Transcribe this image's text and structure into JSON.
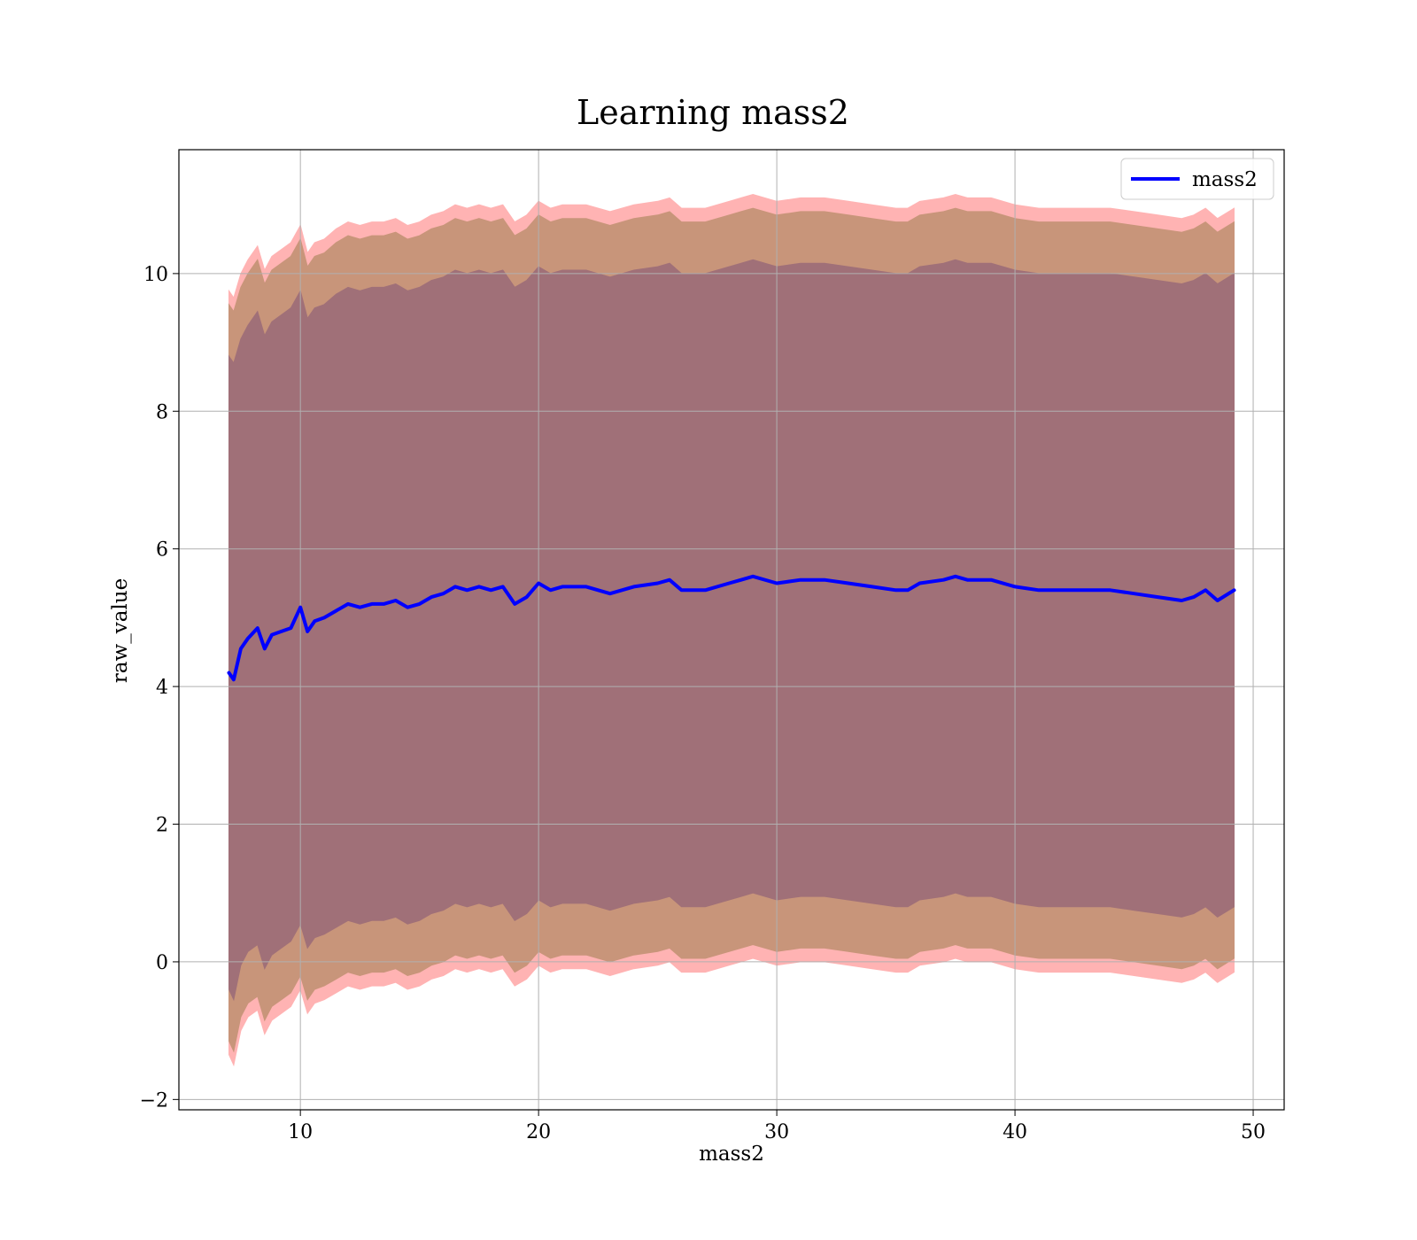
{
  "chart_data": {
    "type": "line",
    "title": "Learning mass2",
    "xlabel": "mass2",
    "ylabel": "raw_value",
    "xlim": [
      4.9,
      51.3
    ],
    "ylim": [
      -2.15,
      11.8
    ],
    "xticks": [
      10,
      20,
      30,
      40,
      50
    ],
    "yticks": [
      -2,
      0,
      2,
      4,
      6,
      8,
      10
    ],
    "grid": true,
    "legend_position": "top-right",
    "colors": {
      "mean_line": "#0000ff",
      "band_outer": "#ffb3b3",
      "band_middle": "#c8957a",
      "band_inner": "#a07078",
      "grid": "#b0b0b0"
    },
    "series": [
      {
        "name": "mass2",
        "x": [
          7.0,
          7.2,
          7.5,
          7.8,
          8.2,
          8.5,
          8.8,
          9.2,
          9.6,
          10.0,
          10.3,
          10.6,
          11.0,
          11.5,
          12.0,
          12.5,
          13.0,
          13.5,
          14.0,
          14.5,
          15.0,
          15.5,
          16.0,
          16.5,
          17.0,
          17.5,
          18.0,
          18.5,
          19.0,
          19.5,
          20.0,
          20.5,
          21.0,
          22.0,
          23.0,
          24.0,
          25.0,
          25.5,
          26.0,
          27.0,
          28.0,
          28.5,
          29.0,
          30.0,
          31.0,
          32.0,
          33.0,
          34.0,
          35.0,
          35.5,
          36.0,
          37.0,
          37.5,
          38.0,
          39.0,
          40.0,
          41.0,
          42.0,
          43.0,
          44.0,
          45.0,
          46.0,
          47.0,
          47.5,
          48.0,
          48.5,
          49.2
        ],
        "y": [
          4.2,
          4.1,
          4.55,
          4.7,
          4.85,
          4.55,
          4.75,
          4.8,
          4.85,
          5.15,
          4.8,
          4.95,
          5.0,
          5.1,
          5.2,
          5.15,
          5.2,
          5.2,
          5.25,
          5.15,
          5.2,
          5.3,
          5.35,
          5.45,
          5.4,
          5.45,
          5.4,
          5.45,
          5.2,
          5.3,
          5.5,
          5.4,
          5.45,
          5.45,
          5.35,
          5.45,
          5.5,
          5.55,
          5.4,
          5.4,
          5.5,
          5.55,
          5.6,
          5.5,
          5.55,
          5.55,
          5.5,
          5.45,
          5.4,
          5.4,
          5.5,
          5.55,
          5.6,
          5.55,
          5.55,
          5.45,
          5.4,
          5.4,
          5.4,
          5.4,
          5.35,
          5.3,
          5.25,
          5.3,
          5.4,
          5.25,
          5.4
        ]
      }
    ],
    "bands": [
      {
        "layer": "outer",
        "x": [
          7.0,
          7.2,
          7.5,
          7.8,
          8.2,
          8.5,
          8.8,
          9.2,
          9.6,
          10.0,
          10.3,
          10.6,
          11.0,
          11.5,
          12.0,
          12.5,
          13.0,
          13.5,
          14.0,
          14.5,
          15.0,
          15.5,
          16.0,
          16.5,
          17.0,
          17.5,
          18.0,
          18.5,
          19.0,
          19.5,
          20.0,
          20.5,
          21.0,
          22.0,
          23.0,
          24.0,
          25.0,
          25.5,
          26.0,
          27.0,
          28.0,
          28.5,
          29.0,
          30.0,
          31.0,
          32.0,
          33.0,
          34.0,
          35.0,
          35.5,
          36.0,
          37.0,
          37.5,
          38.0,
          39.0,
          40.0,
          41.0,
          42.0,
          43.0,
          44.0,
          45.0,
          46.0,
          47.0,
          47.5,
          48.0,
          48.5,
          49.2
        ],
        "upper": [
          9.75,
          9.65,
          10.0,
          10.2,
          10.4,
          10.05,
          10.25,
          10.35,
          10.45,
          10.7,
          10.3,
          10.45,
          10.5,
          10.65,
          10.75,
          10.7,
          10.75,
          10.75,
          10.8,
          10.7,
          10.75,
          10.85,
          10.9,
          11.0,
          10.95,
          11.0,
          10.95,
          11.0,
          10.75,
          10.85,
          11.05,
          10.95,
          11.0,
          11.0,
          10.9,
          11.0,
          11.05,
          11.1,
          10.95,
          10.95,
          11.05,
          11.1,
          11.15,
          11.05,
          11.1,
          11.1,
          11.05,
          11.0,
          10.95,
          10.95,
          11.05,
          11.1,
          11.15,
          11.1,
          11.1,
          11.0,
          10.95,
          10.95,
          10.95,
          10.95,
          10.9,
          10.85,
          10.8,
          10.85,
          10.95,
          10.8,
          10.95
        ],
        "lower": [
          -1.35,
          -1.5,
          -1.0,
          -0.8,
          -0.7,
          -1.05,
          -0.85,
          -0.75,
          -0.65,
          -0.4,
          -0.75,
          -0.6,
          -0.55,
          -0.45,
          -0.35,
          -0.4,
          -0.35,
          -0.35,
          -0.3,
          -0.4,
          -0.35,
          -0.25,
          -0.2,
          -0.1,
          -0.15,
          -0.1,
          -0.15,
          -0.1,
          -0.35,
          -0.25,
          -0.05,
          -0.15,
          -0.1,
          -0.1,
          -0.2,
          -0.1,
          -0.05,
          0.0,
          -0.15,
          -0.15,
          -0.05,
          0.0,
          0.05,
          -0.05,
          0.0,
          0.0,
          -0.05,
          -0.1,
          -0.15,
          -0.15,
          -0.05,
          0.0,
          0.05,
          0.0,
          0.0,
          -0.1,
          -0.15,
          -0.15,
          -0.15,
          -0.15,
          -0.2,
          -0.25,
          -0.3,
          -0.25,
          -0.15,
          -0.3,
          -0.15
        ]
      },
      {
        "layer": "middle",
        "x": [
          7.0,
          7.2,
          7.5,
          7.8,
          8.2,
          8.5,
          8.8,
          9.2,
          9.6,
          10.0,
          10.3,
          10.6,
          11.0,
          11.5,
          12.0,
          12.5,
          13.0,
          13.5,
          14.0,
          14.5,
          15.0,
          15.5,
          16.0,
          16.5,
          17.0,
          17.5,
          18.0,
          18.5,
          19.0,
          19.5,
          20.0,
          20.5,
          21.0,
          22.0,
          23.0,
          24.0,
          25.0,
          25.5,
          26.0,
          27.0,
          28.0,
          28.5,
          29.0,
          30.0,
          31.0,
          32.0,
          33.0,
          34.0,
          35.0,
          35.5,
          36.0,
          37.0,
          37.5,
          38.0,
          39.0,
          40.0,
          41.0,
          42.0,
          43.0,
          44.0,
          45.0,
          46.0,
          47.0,
          47.5,
          48.0,
          48.5,
          49.2
        ],
        "upper": [
          9.55,
          9.45,
          9.8,
          10.0,
          10.2,
          9.85,
          10.05,
          10.15,
          10.25,
          10.5,
          10.1,
          10.25,
          10.3,
          10.45,
          10.55,
          10.5,
          10.55,
          10.55,
          10.6,
          10.5,
          10.55,
          10.65,
          10.7,
          10.8,
          10.75,
          10.8,
          10.75,
          10.8,
          10.55,
          10.65,
          10.85,
          10.75,
          10.8,
          10.8,
          10.7,
          10.8,
          10.85,
          10.9,
          10.75,
          10.75,
          10.85,
          10.9,
          10.95,
          10.85,
          10.9,
          10.9,
          10.85,
          10.8,
          10.75,
          10.75,
          10.85,
          10.9,
          10.95,
          10.9,
          10.9,
          10.8,
          10.75,
          10.75,
          10.75,
          10.75,
          10.7,
          10.65,
          10.6,
          10.65,
          10.75,
          10.6,
          10.75
        ],
        "lower": [
          -1.15,
          -1.3,
          -0.8,
          -0.6,
          -0.5,
          -0.85,
          -0.65,
          -0.55,
          -0.45,
          -0.2,
          -0.55,
          -0.4,
          -0.35,
          -0.25,
          -0.15,
          -0.2,
          -0.15,
          -0.15,
          -0.1,
          -0.2,
          -0.15,
          -0.05,
          0.0,
          0.1,
          0.05,
          0.1,
          0.05,
          0.1,
          -0.15,
          -0.05,
          0.15,
          0.05,
          0.1,
          0.1,
          0.0,
          0.1,
          0.15,
          0.2,
          0.05,
          0.05,
          0.15,
          0.2,
          0.25,
          0.15,
          0.2,
          0.2,
          0.15,
          0.1,
          0.05,
          0.05,
          0.15,
          0.2,
          0.25,
          0.2,
          0.2,
          0.1,
          0.05,
          0.05,
          0.05,
          0.05,
          0.0,
          -0.05,
          -0.1,
          -0.05,
          0.05,
          -0.1,
          0.05
        ]
      },
      {
        "layer": "inner",
        "x": [
          7.0,
          7.2,
          7.5,
          7.8,
          8.2,
          8.5,
          8.8,
          9.2,
          9.6,
          10.0,
          10.3,
          10.6,
          11.0,
          11.5,
          12.0,
          12.5,
          13.0,
          13.5,
          14.0,
          14.5,
          15.0,
          15.5,
          16.0,
          16.5,
          17.0,
          17.5,
          18.0,
          18.5,
          19.0,
          19.5,
          20.0,
          20.5,
          21.0,
          22.0,
          23.0,
          24.0,
          25.0,
          25.5,
          26.0,
          27.0,
          28.0,
          28.5,
          29.0,
          30.0,
          31.0,
          32.0,
          33.0,
          34.0,
          35.0,
          35.5,
          36.0,
          37.0,
          37.5,
          38.0,
          39.0,
          40.0,
          41.0,
          42.0,
          43.0,
          44.0,
          45.0,
          46.0,
          47.0,
          47.5,
          48.0,
          48.5,
          49.2
        ],
        "upper": [
          8.8,
          8.7,
          9.05,
          9.25,
          9.45,
          9.1,
          9.3,
          9.4,
          9.5,
          9.75,
          9.35,
          9.5,
          9.55,
          9.7,
          9.8,
          9.75,
          9.8,
          9.8,
          9.85,
          9.75,
          9.8,
          9.9,
          9.95,
          10.05,
          10.0,
          10.05,
          10.0,
          10.05,
          9.8,
          9.9,
          10.1,
          10.0,
          10.05,
          10.05,
          9.95,
          10.05,
          10.1,
          10.15,
          10.0,
          10.0,
          10.1,
          10.15,
          10.2,
          10.1,
          10.15,
          10.15,
          10.1,
          10.05,
          10.0,
          10.0,
          10.1,
          10.15,
          10.2,
          10.15,
          10.15,
          10.05,
          10.0,
          10.0,
          10.0,
          10.0,
          9.95,
          9.9,
          9.85,
          9.9,
          10.0,
          9.85,
          10.0
        ],
        "lower": [
          -0.4,
          -0.55,
          -0.05,
          0.15,
          0.25,
          -0.1,
          0.1,
          0.2,
          0.3,
          0.55,
          0.2,
          0.35,
          0.4,
          0.5,
          0.6,
          0.55,
          0.6,
          0.6,
          0.65,
          0.55,
          0.6,
          0.7,
          0.75,
          0.85,
          0.8,
          0.85,
          0.8,
          0.85,
          0.6,
          0.7,
          0.9,
          0.8,
          0.85,
          0.85,
          0.75,
          0.85,
          0.9,
          0.95,
          0.8,
          0.8,
          0.9,
          0.95,
          1.0,
          0.9,
          0.95,
          0.95,
          0.9,
          0.85,
          0.8,
          0.8,
          0.9,
          0.95,
          1.0,
          0.95,
          0.95,
          0.85,
          0.8,
          0.8,
          0.8,
          0.8,
          0.75,
          0.7,
          0.65,
          0.7,
          0.8,
          0.65,
          0.8
        ]
      }
    ]
  }
}
